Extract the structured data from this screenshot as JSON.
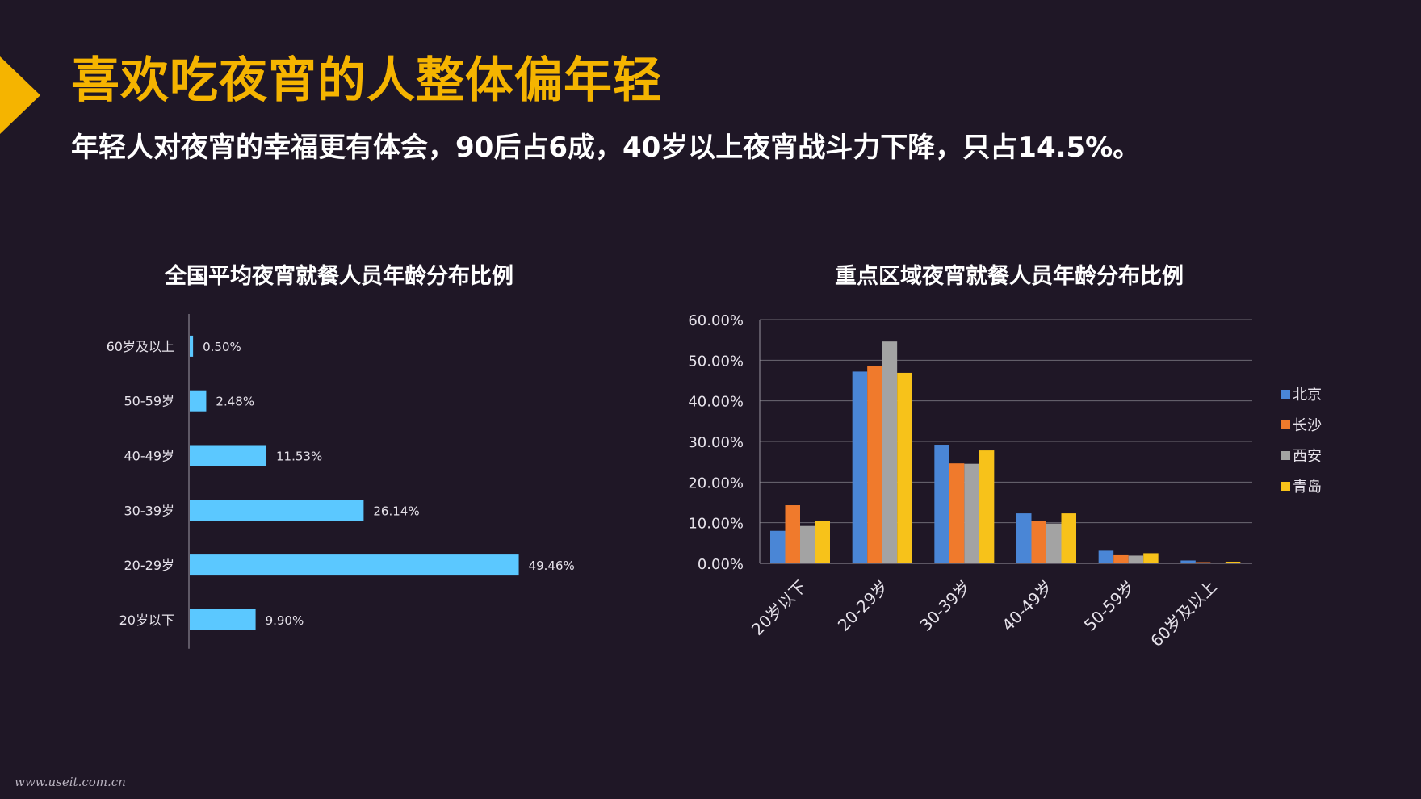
{
  "header": {
    "title": "喜欢吃夜宵的人整体偏年轻",
    "subtitle": "年轻人对夜宵的幸福更有体会，90后占6成，40岁以上夜宵战斗力下降，只占14.5%。"
  },
  "colors": {
    "background": "#1f1726",
    "accent": "#f5b400",
    "bar_national": "#5bc8ff"
  },
  "watermark": "www.useit.com.cn",
  "chart_data": [
    {
      "type": "bar",
      "orientation": "horizontal",
      "title": "全国平均夜宵就餐人员年龄分布比例",
      "categories": [
        "60岁及以上",
        "50-59岁",
        "40-49岁",
        "30-39岁",
        "20-29岁",
        "20岁以下"
      ],
      "values": [
        0.5,
        2.48,
        11.53,
        26.14,
        49.46,
        9.9
      ],
      "data_labels": [
        "0.50%",
        "2.48%",
        "11.53%",
        "26.14%",
        "49.46%",
        "9.90%"
      ],
      "xlim": [
        0,
        50
      ],
      "grid": false
    },
    {
      "type": "bar",
      "title": "重点区域夜宵就餐人员年龄分布比例",
      "categories": [
        "20岁以下",
        "20-29岁",
        "30-39岁",
        "40-49岁",
        "50-59岁",
        "60岁及以上"
      ],
      "series": [
        {
          "name": "北京",
          "color": "#4a86d6",
          "values": [
            8.0,
            47.2,
            29.2,
            12.3,
            3.1,
            0.7
          ]
        },
        {
          "name": "长沙",
          "color": "#f07a2c",
          "values": [
            14.3,
            48.6,
            24.6,
            10.5,
            2.0,
            0.3
          ]
        },
        {
          "name": "西安",
          "color": "#a3a3a3",
          "values": [
            9.2,
            54.6,
            24.5,
            9.8,
            1.9,
            0.2
          ]
        },
        {
          "name": "青岛",
          "color": "#f7c21a",
          "values": [
            10.4,
            46.9,
            27.8,
            12.3,
            2.5,
            0.4
          ]
        }
      ],
      "ylim": [
        0,
        60
      ],
      "yticks": [
        0,
        10,
        20,
        30,
        40,
        50,
        60
      ],
      "ytick_labels": [
        "0.00%",
        "10.00%",
        "20.00%",
        "30.00%",
        "40.00%",
        "50.00%",
        "60.00%"
      ],
      "grid": true,
      "legend": "right"
    }
  ]
}
